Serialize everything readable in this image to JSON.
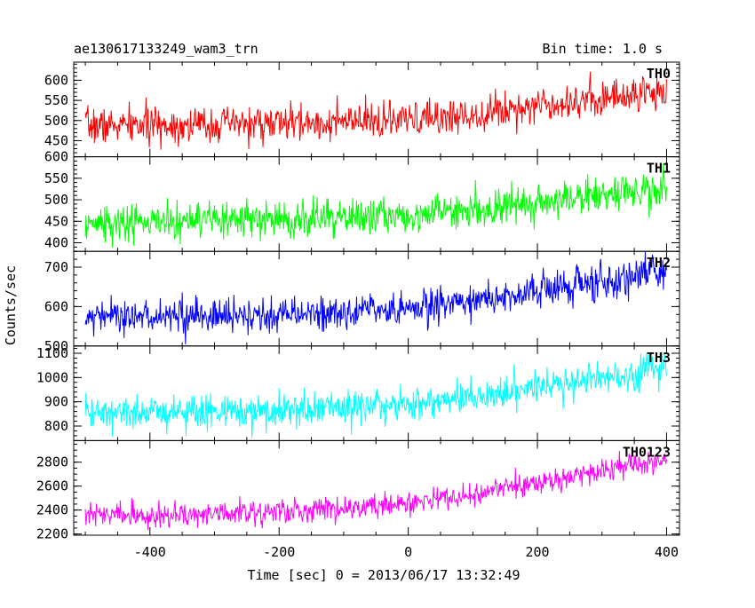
{
  "figure": {
    "title_left": "ae130617133249_wam3_trn",
    "title_right": "Bin time: 1.0 s",
    "xlabel": "Time [sec] 0 = 2013/06/17 13:32:49",
    "ylabel": "Counts/sec"
  },
  "chart_data": {
    "type": "line",
    "shared_x": true,
    "x_range": [
      -500,
      400
    ],
    "xlim": [
      -518,
      420
    ],
    "xticks": [
      -400,
      -200,
      0,
      200,
      400
    ],
    "x_minor_step": 50,
    "bin_time_s": 1.0,
    "noise_seed": 7,
    "panels": [
      {
        "name": "TH0",
        "color": "#ff0000",
        "ylim": [
          410,
          645
        ],
        "yticks": [
          450,
          500,
          550,
          600
        ],
        "y_minor_step": 10,
        "trend": [
          [
            -500,
            487
          ],
          [
            -300,
            490
          ],
          [
            -100,
            495
          ],
          [
            0,
            500
          ],
          [
            100,
            515
          ],
          [
            200,
            540
          ],
          [
            300,
            555
          ],
          [
            400,
            575
          ]
        ],
        "noise_sd": 22
      },
      {
        "name": "TH1",
        "color": "#00ff00",
        "ylim": [
          380,
          600
        ],
        "yticks": [
          400,
          450,
          500,
          550,
          600
        ],
        "y_minor_step": 10,
        "trend": [
          [
            -500,
            445
          ],
          [
            -300,
            450
          ],
          [
            -100,
            458
          ],
          [
            0,
            465
          ],
          [
            100,
            478
          ],
          [
            200,
            495
          ],
          [
            300,
            510
          ],
          [
            400,
            525
          ]
        ],
        "noise_sd": 22
      },
      {
        "name": "TH2",
        "color": "#0000ff",
        "ylim": [
          500,
          740
        ],
        "yticks": [
          500,
          600,
          700
        ],
        "y_minor_step": 20,
        "trend": [
          [
            -500,
            578
          ],
          [
            -300,
            575
          ],
          [
            -100,
            583
          ],
          [
            0,
            595
          ],
          [
            100,
            615
          ],
          [
            200,
            640
          ],
          [
            300,
            662
          ],
          [
            400,
            690
          ]
        ],
        "noise_sd": 22
      },
      {
        "name": "TH3",
        "color": "#00ffff",
        "ylim": [
          740,
          1130
        ],
        "yticks": [
          800,
          900,
          1000,
          1100
        ],
        "y_minor_step": 20,
        "trend": [
          [
            -500,
            850
          ],
          [
            -300,
            860
          ],
          [
            -100,
            872
          ],
          [
            0,
            890
          ],
          [
            100,
            922
          ],
          [
            200,
            962
          ],
          [
            300,
            1000
          ],
          [
            400,
            1040
          ]
        ],
        "noise_sd": 35
      },
      {
        "name": "TH0123",
        "color": "#ff00ff",
        "ylim": [
          2190,
          2980
        ],
        "yticks": [
          2200,
          2400,
          2600,
          2800
        ],
        "y_minor_step": 50,
        "trend": [
          [
            -500,
            2360
          ],
          [
            -300,
            2370
          ],
          [
            -100,
            2410
          ],
          [
            0,
            2460
          ],
          [
            100,
            2530
          ],
          [
            200,
            2620
          ],
          [
            300,
            2730
          ],
          [
            400,
            2840
          ]
        ],
        "noise_sd": 50
      }
    ]
  }
}
